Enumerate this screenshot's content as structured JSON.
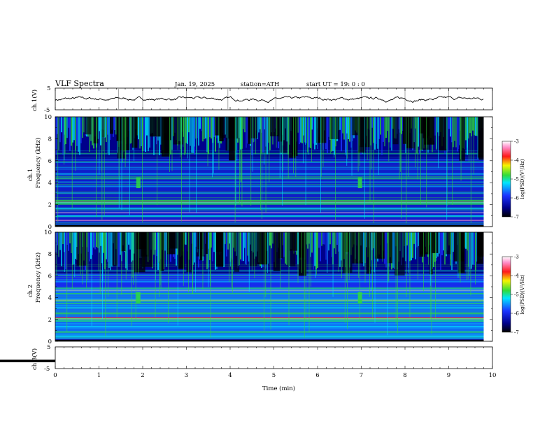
{
  "header": {
    "title": "VLF  Spectra",
    "date": "Jan. 19, 2025",
    "station": "station=ATH",
    "start": "start  UT =   19: 0  : 0"
  },
  "colors": {
    "spec_low": "#00008b",
    "spec_blue": "#1a33ff",
    "spec_cyan": "#00e5ff",
    "spec_green": "#2fdc3c",
    "spec_yellow": "#f5f500",
    "spec_red": "#ff1a1a",
    "spec_pink": "#ff8cc8",
    "trace": "#000000"
  },
  "chart_data": [
    {
      "type": "line",
      "name": "ch1-waveform",
      "ylabel": "ch.1(V)",
      "ylim": [
        -5,
        5
      ],
      "yticks": [
        "5",
        "-5"
      ],
      "xlim": [
        0,
        10
      ]
    },
    {
      "type": "heatmap",
      "name": "ch1-spectrogram",
      "ylabel_top": "ch.1",
      "ylabel": "Frequency  (kHz)",
      "ylim": [
        0,
        10
      ],
      "yticks": [
        "0",
        "2",
        "4",
        "6",
        "8",
        "10"
      ],
      "xlim": [
        0,
        10
      ],
      "data_end_min": 9.8,
      "colorbar": {
        "label": "log(PSD)(V²/Hz)",
        "range": [
          -7,
          -3
        ],
        "ticks": [
          "-3",
          "-4",
          "-5",
          "-6",
          "-7"
        ]
      }
    },
    {
      "type": "heatmap",
      "name": "ch2-spectrogram",
      "ylabel_top": "ch.2",
      "ylabel": "Frequency  (kHz)",
      "ylim": [
        0,
        10
      ],
      "yticks": [
        "0",
        "2",
        "4",
        "6",
        "8",
        "10"
      ],
      "xlim": [
        0,
        10
      ],
      "data_end_min": 9.8,
      "colorbar": {
        "label": "log(PSD)(V²/Hz)",
        "range": [
          -7,
          -3
        ],
        "ticks": [
          "-3",
          "-4",
          "-5",
          "-6",
          "-7"
        ]
      }
    },
    {
      "type": "line",
      "name": "ch3-waveform",
      "ylabel": "ch.3(V)",
      "ylim": [
        -5,
        5
      ],
      "yticks": [
        "5",
        "-5"
      ],
      "xlim": [
        0,
        10
      ],
      "xlabel": "Time  (min)",
      "xticks": [
        "0",
        "1",
        "2",
        "3",
        "4",
        "5",
        "6",
        "7",
        "8",
        "9",
        "10"
      ],
      "level": -1.5
    }
  ]
}
